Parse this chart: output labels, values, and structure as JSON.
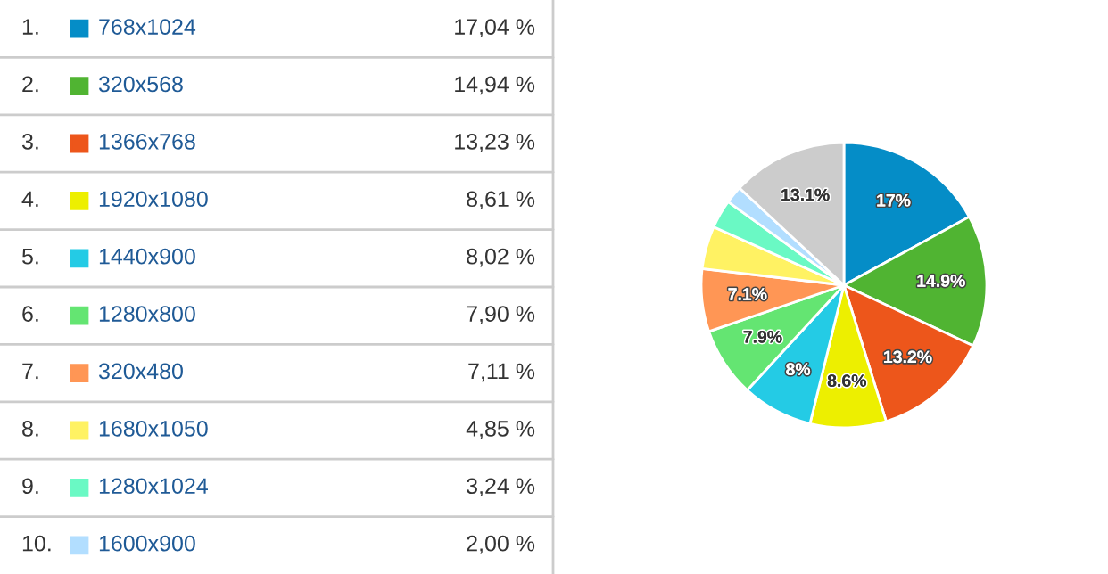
{
  "chart_data": {
    "type": "pie",
    "legend": "left",
    "categories": [
      "768x1024",
      "320x568",
      "1366x768",
      "1920x1080",
      "1440x900",
      "1280x800",
      "320x480",
      "1680x1050",
      "1280x1024",
      "1600x900",
      null
    ],
    "values": [
      17.04,
      14.94,
      13.23,
      8.61,
      8.02,
      7.9,
      7.11,
      4.85,
      3.24,
      2.0,
      13.06
    ],
    "colors": [
      "#058dc7",
      "#50b432",
      "#ed561b",
      "#edef00",
      "#24cbe5",
      "#64e572",
      "#ff9655",
      "#fff263",
      "#6af9c4",
      "#b2deff",
      "#cccccc"
    ],
    "value_labels": [
      "17%",
      "14.9%",
      "13.2%",
      "8.6%",
      "8%",
      "7.9%",
      "7.1%",
      null,
      null,
      null,
      "13.1%"
    ],
    "annotations": [
      "1.",
      "2.",
      "3.",
      "4.",
      "5.",
      "6.",
      "7.",
      "8.",
      "9.",
      "10.",
      "17,04 %",
      "14,94 %",
      "13,23 %",
      "8,61 %",
      "8,02 %",
      "7,90 %",
      "7,11 %",
      "4,85 %",
      "3,24 %",
      "2,00 %"
    ]
  }
}
